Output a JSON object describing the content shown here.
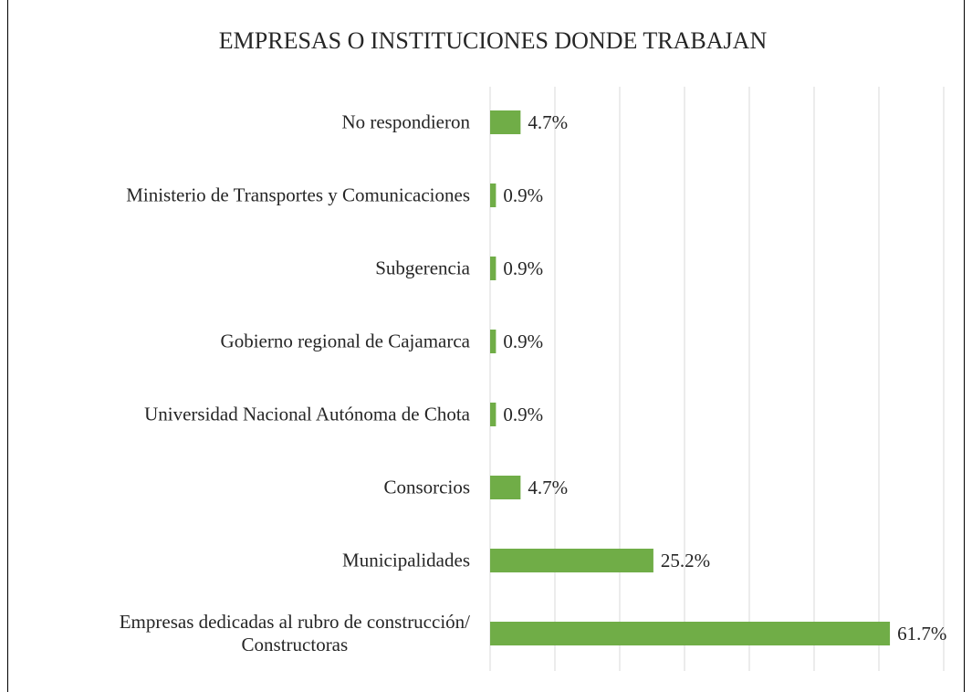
{
  "chart_data": {
    "type": "bar",
    "orientation": "horizontal",
    "title": "EMPRESAS O INSTITUCIONES DONDE TRABAJAN",
    "categories": [
      "No respondieron",
      "Ministerio de Transportes y Comunicaciones",
      "Subgerencia",
      "Gobierno regional de Cajamarca",
      "Universidad Nacional Autónoma de Chota",
      "Consorcios",
      "Municipalidades",
      "Empresas dedicadas al rubro de construcción/\nConstructoras"
    ],
    "values": [
      4.7,
      0.9,
      0.9,
      0.9,
      0.9,
      4.7,
      25.2,
      61.7
    ],
    "value_labels": [
      "4.7%",
      "0.9%",
      "0.9%",
      "0.9%",
      "0.9%",
      "4.7%",
      "25.2%",
      "61.7%"
    ],
    "color": "#70ad47",
    "xlim": [
      0,
      70
    ],
    "xticks": [
      0,
      10,
      20,
      30,
      40,
      50,
      60,
      70
    ],
    "grid": true
  }
}
